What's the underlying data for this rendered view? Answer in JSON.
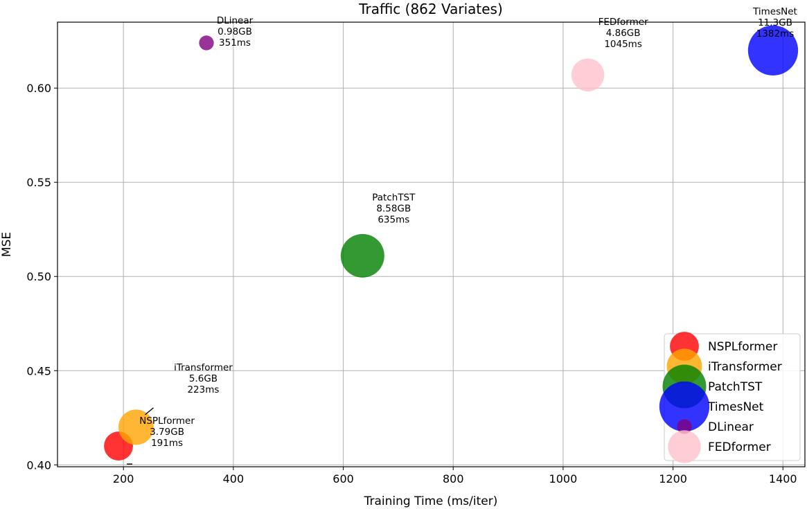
{
  "chart_data": {
    "type": "scatter",
    "title": "Traffic (862 Variates)",
    "xlabel": "Training Time (ms/iter)",
    "ylabel": "MSE",
    "xlim": [
      80,
      1440
    ],
    "ylim": [
      0.399,
      0.635
    ],
    "xticks": [
      200,
      400,
      600,
      800,
      1000,
      1200,
      1400
    ],
    "yticks": [
      0.4,
      0.45,
      0.5,
      0.55,
      0.6
    ],
    "xtick_labels": [
      "200",
      "400",
      "600",
      "800",
      "1000",
      "1200",
      "1400"
    ],
    "ytick_labels": [
      "0.40",
      "0.45",
      "0.50",
      "0.55",
      "0.60"
    ],
    "grid": true,
    "legend_position": "lower-right",
    "series": [
      {
        "name": "NSPLformer",
        "x": 191,
        "y": 0.41,
        "memory_gb": 3.79,
        "color": "#ff0000",
        "annotation": [
          "NSPLformer",
          "3.79GB",
          "191ms"
        ]
      },
      {
        "name": "iTransformer",
        "x": 223,
        "y": 0.42,
        "memory_gb": 5.6,
        "color": "#ffa500",
        "annotation": [
          "iTransformer",
          "5.6GB",
          "223ms"
        ]
      },
      {
        "name": "PatchTST",
        "x": 635,
        "y": 0.511,
        "memory_gb": 8.58,
        "color": "#008000",
        "annotation": [
          "PatchTST",
          "8.58GB",
          "635ms"
        ]
      },
      {
        "name": "TimesNet",
        "x": 1382,
        "y": 0.62,
        "memory_gb": 11.3,
        "color": "#0000ff",
        "annotation": [
          "TimesNet",
          "11.3GB",
          "1382ms"
        ]
      },
      {
        "name": "DLinear",
        "x": 351,
        "y": 0.624,
        "memory_gb": 0.98,
        "color": "#800080",
        "annotation": [
          "DLinear",
          "0.98GB",
          "351ms"
        ]
      },
      {
        "name": "FEDformer",
        "x": 1045,
        "y": 0.607,
        "memory_gb": 4.86,
        "color": "#ffc0cb",
        "annotation": [
          "FEDformer",
          "4.86GB",
          "1045ms"
        ]
      }
    ]
  }
}
